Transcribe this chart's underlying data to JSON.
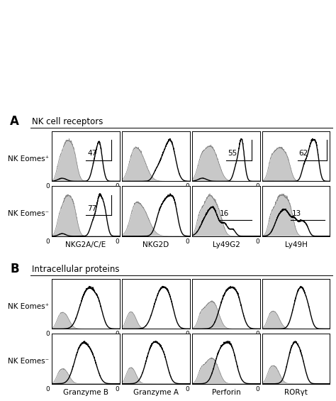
{
  "fig_width": 4.74,
  "fig_height": 5.65,
  "dpi": 100,
  "background": "#ffffff",
  "section_A_title": "NK cell receptors",
  "section_B_title": "Intracellular proteins",
  "row_labels_A": [
    "NK Eomes⁺",
    "NK Eomes⁻"
  ],
  "row_labels_B": [
    "NK Eomes⁺",
    "NK Eomes⁻"
  ],
  "col_labels_A": [
    "NKG2A/C/E",
    "NKG2D",
    "Ly49G2",
    "Ly49H"
  ],
  "col_labels_B": [
    "Granzyme B",
    "Granzyme A",
    "Perforin",
    "RORγt"
  ],
  "gray_color": "#c8c8c8",
  "black_color": "#000000",
  "gray_line_color": "#888888"
}
